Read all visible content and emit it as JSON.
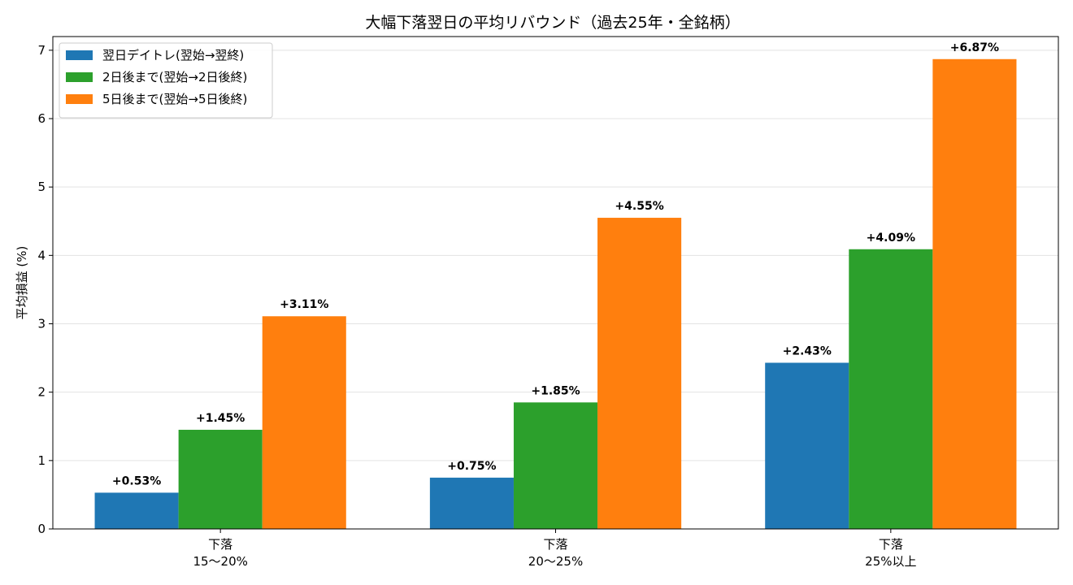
{
  "chart_data": {
    "type": "bar",
    "title": "大幅下落翌日の平均リバウンド（過去25年・全銘柄）",
    "xlabel": "",
    "ylabel": "平均損益 (%)",
    "categories": [
      [
        "下落",
        "15〜20%"
      ],
      [
        "下落",
        "20〜25%"
      ],
      [
        "下落",
        "25%以上"
      ]
    ],
    "series": [
      {
        "name": "翌日デイトレ(翌始→翌終)",
        "color": "#1f77b4",
        "values": [
          0.53,
          0.75,
          2.43
        ],
        "labels": [
          "+0.53%",
          "+0.75%",
          "+2.43%"
        ]
      },
      {
        "name": "2日後まで(翌始→2日後終)",
        "color": "#2ca02c",
        "values": [
          1.45,
          1.85,
          4.09
        ],
        "labels": [
          "+1.45%",
          "+1.85%",
          "+4.09%"
        ]
      },
      {
        "name": "5日後まで(翌始→5日後終)",
        "color": "#ff7f0e",
        "values": [
          3.11,
          4.55,
          6.87
        ],
        "labels": [
          "+3.11%",
          "+4.55%",
          "+6.87%"
        ]
      }
    ],
    "ylim": [
      0,
      7.2
    ],
    "yticks": [
      "0",
      "1",
      "2",
      "3",
      "4",
      "5",
      "6",
      "7"
    ],
    "grid": "horizontal",
    "legend_position": "top-left"
  }
}
